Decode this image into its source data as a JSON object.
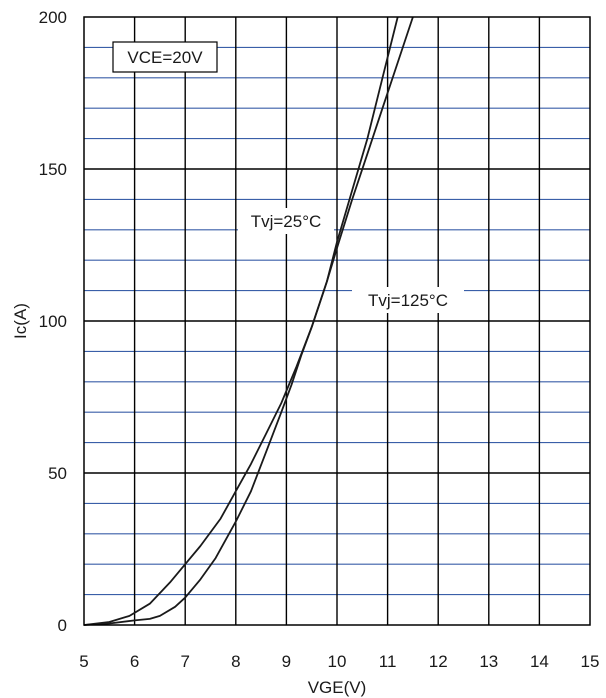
{
  "chart_data": {
    "type": "line",
    "xlabel": "VGE(V)",
    "ylabel": "Ic(A)",
    "xlim": [
      5,
      15
    ],
    "ylim": [
      0,
      200
    ],
    "x_ticks": [
      5,
      6,
      7,
      8,
      9,
      10,
      11,
      12,
      13,
      14,
      15
    ],
    "y_ticks": [
      0,
      50,
      100,
      150,
      200
    ],
    "grid": true,
    "minor_y_grid_step": 10,
    "colors": {
      "major_grid": "#000000",
      "minor_grid": "#3a5fa8",
      "curve": "#1a1a1a"
    },
    "annotations": {
      "condition": "VCE=20V",
      "curve_25": "Tvj=25°C",
      "curve_125": "Tvj=125°C"
    },
    "series": [
      {
        "name": "Tvj=25°C",
        "x": [
          5.0,
          5.5,
          6.0,
          6.3,
          6.5,
          6.8,
          7.0,
          7.3,
          7.6,
          8.0,
          8.3,
          8.6,
          8.9,
          9.1,
          9.3,
          9.5,
          9.8,
          10.0,
          10.3,
          10.6,
          10.9,
          11.2
        ],
        "y": [
          0,
          0.5,
          1.5,
          2,
          3,
          6,
          9,
          15,
          22,
          34,
          44,
          57,
          70,
          79,
          89,
          98,
          113,
          126,
          143,
          160,
          180,
          200
        ]
      },
      {
        "name": "Tvj=125°C",
        "x": [
          5.0,
          5.5,
          5.9,
          6.3,
          6.7,
          7.0,
          7.3,
          7.7,
          8.0,
          8.3,
          8.6,
          8.9,
          9.2,
          9.5,
          9.8,
          10.0,
          10.3,
          10.6,
          10.9,
          11.2,
          11.5
        ],
        "y": [
          0,
          1,
          3,
          7,
          14,
          20,
          26,
          35,
          44,
          53,
          63,
          73,
          85,
          98,
          113,
          124,
          140,
          155,
          170,
          185,
          200
        ]
      }
    ]
  }
}
